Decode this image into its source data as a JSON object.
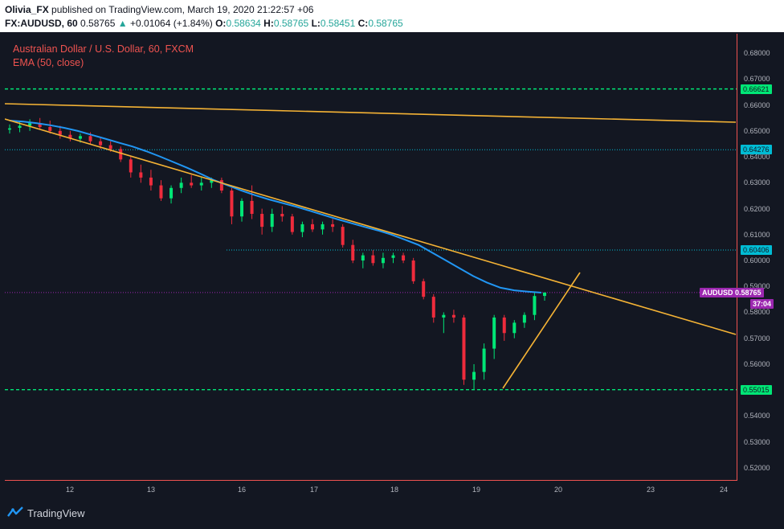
{
  "header": {
    "author": "Olivia_FX",
    "published_text": "published on TradingView.com, March 19, 2020 21:22:57 +06",
    "symbol_interval": "FX:AUDUSD, 60",
    "last_price": "0.58765",
    "change": "+0.01064 (+1.84%)",
    "ohlc": {
      "o_label": "O:",
      "o": "0.58634",
      "h_label": "H:",
      "h": "0.58765",
      "l_label": "L:",
      "l": "0.58451",
      "c_label": "C:",
      "c": "0.58765"
    }
  },
  "legend": {
    "series_title": "Australian Dollar / U.S. Dollar, 60, FXCM",
    "indicator": "EMA (50, close)"
  },
  "colors": {
    "background": "#131722",
    "up_candle": "#26a69a",
    "bull_candle": "#00e676",
    "down_candle": "#ef2b3c",
    "ema": "#2196f3",
    "trendline": "#f5b335",
    "support_resistance": "#00e676",
    "dotted_level": "#00bcd4",
    "current_price": "#9c27b0",
    "axis_text": "#b2b5be",
    "axis_line": "#ef5350"
  },
  "price_axis": {
    "min": 0.515,
    "max": 0.6875,
    "ticks": [
      "0.68000",
      "0.67000",
      "0.66000",
      "0.65000",
      "0.64000",
      "0.63000",
      "0.62000",
      "0.61000",
      "0.60000",
      "0.59000",
      "0.58000",
      "0.57000",
      "0.56000",
      "0.55000",
      "0.54000",
      "0.53000",
      "0.52000"
    ]
  },
  "time_axis": {
    "labels": [
      "12",
      "13",
      "16",
      "17",
      "18",
      "19",
      "20",
      "23",
      "24"
    ]
  },
  "levels": [
    {
      "name": "resistance-level",
      "value": 0.66621,
      "label": "0.66621",
      "style": "dashed-green"
    },
    {
      "name": "level-64276",
      "value": 0.64276,
      "label": "0.64276",
      "style": "dotted-cyan"
    },
    {
      "name": "level-60406",
      "value": 0.60406,
      "label": "0.60406",
      "style": "dotted-cyan"
    },
    {
      "name": "support-level",
      "value": 0.55015,
      "label": "0.55015",
      "style": "dashed-green"
    }
  ],
  "current_price_badge": {
    "symbol": "AUDUSD",
    "price": "0.58765",
    "label": "AUDUSD 0.58765",
    "value": 0.58765,
    "countdown": "37:04"
  },
  "chart_data": {
    "type": "candlestick",
    "symbol": "AUDUSD",
    "timeframe": "60",
    "x_labels": [
      "12",
      "13",
      "16",
      "17",
      "18",
      "19",
      "20",
      "23",
      "24"
    ],
    "ylim": [
      0.515,
      0.6875
    ],
    "candles_ohlc": [
      [
        0.6505,
        0.6525,
        0.649,
        0.651
      ],
      [
        0.6512,
        0.6535,
        0.6495,
        0.652
      ],
      [
        0.652,
        0.6545,
        0.65,
        0.653
      ],
      [
        0.653,
        0.655,
        0.6505,
        0.6515
      ],
      [
        0.6515,
        0.654,
        0.649,
        0.65
      ],
      [
        0.65,
        0.652,
        0.647,
        0.6485
      ],
      [
        0.6485,
        0.65,
        0.646,
        0.647
      ],
      [
        0.647,
        0.649,
        0.6455,
        0.648
      ],
      [
        0.648,
        0.6495,
        0.645,
        0.646
      ],
      [
        0.646,
        0.6475,
        0.643,
        0.6445
      ],
      [
        0.6445,
        0.646,
        0.642,
        0.643
      ],
      [
        0.643,
        0.644,
        0.638,
        0.639
      ],
      [
        0.639,
        0.64,
        0.632,
        0.634
      ],
      [
        0.634,
        0.637,
        0.63,
        0.632
      ],
      [
        0.632,
        0.635,
        0.627,
        0.629
      ],
      [
        0.629,
        0.631,
        0.623,
        0.624
      ],
      [
        0.624,
        0.629,
        0.622,
        0.628
      ],
      [
        0.628,
        0.632,
        0.626,
        0.63
      ],
      [
        0.63,
        0.633,
        0.628,
        0.629
      ],
      [
        0.629,
        0.632,
        0.627,
        0.63
      ],
      [
        0.63,
        0.632,
        0.628,
        0.631
      ],
      [
        0.631,
        0.632,
        0.626,
        0.627
      ],
      [
        0.627,
        0.628,
        0.614,
        0.617
      ],
      [
        0.617,
        0.624,
        0.615,
        0.623
      ],
      [
        0.623,
        0.629,
        0.616,
        0.618
      ],
      [
        0.618,
        0.62,
        0.61,
        0.613
      ],
      [
        0.613,
        0.62,
        0.611,
        0.618
      ],
      [
        0.618,
        0.621,
        0.615,
        0.617
      ],
      [
        0.617,
        0.618,
        0.61,
        0.611
      ],
      [
        0.611,
        0.615,
        0.609,
        0.614
      ],
      [
        0.614,
        0.616,
        0.611,
        0.612
      ],
      [
        0.612,
        0.615,
        0.61,
        0.614
      ],
      [
        0.614,
        0.616,
        0.611,
        0.613
      ],
      [
        0.613,
        0.614,
        0.605,
        0.606
      ],
      [
        0.606,
        0.608,
        0.599,
        0.6
      ],
      [
        0.6,
        0.603,
        0.597,
        0.602
      ],
      [
        0.602,
        0.604,
        0.598,
        0.599
      ],
      [
        0.599,
        0.603,
        0.597,
        0.601
      ],
      [
        0.601,
        0.603,
        0.599,
        0.602
      ],
      [
        0.602,
        0.603,
        0.599,
        0.6
      ],
      [
        0.6,
        0.601,
        0.591,
        0.592
      ],
      [
        0.592,
        0.593,
        0.585,
        0.586
      ],
      [
        0.586,
        0.587,
        0.576,
        0.578
      ],
      [
        0.578,
        0.58,
        0.572,
        0.579
      ],
      [
        0.579,
        0.581,
        0.576,
        0.578
      ],
      [
        0.578,
        0.579,
        0.552,
        0.554
      ],
      [
        0.554,
        0.56,
        0.55,
        0.557
      ],
      [
        0.557,
        0.568,
        0.554,
        0.566
      ],
      [
        0.566,
        0.579,
        0.562,
        0.578
      ],
      [
        0.578,
        0.579,
        0.569,
        0.572
      ],
      [
        0.572,
        0.577,
        0.57,
        0.576
      ],
      [
        0.576,
        0.58,
        0.574,
        0.579
      ],
      [
        0.579,
        0.588,
        0.577,
        0.5863
      ],
      [
        0.58634,
        0.58765,
        0.58451,
        0.58765
      ]
    ],
    "ema_50": [
      0.654,
      0.6536,
      0.653,
      0.6522,
      0.6512,
      0.65,
      0.6485,
      0.647,
      0.6455,
      0.644,
      0.6422,
      0.6402,
      0.638,
      0.6358,
      0.6335,
      0.631,
      0.629,
      0.627,
      0.6252,
      0.6236,
      0.6222,
      0.6208,
      0.6192,
      0.6176,
      0.616,
      0.6145,
      0.613,
      0.6116,
      0.61,
      0.608,
      0.606,
      0.603,
      0.6,
      0.597,
      0.594,
      0.5915,
      0.5895,
      0.5885,
      0.588,
      0.5876
    ]
  }
}
